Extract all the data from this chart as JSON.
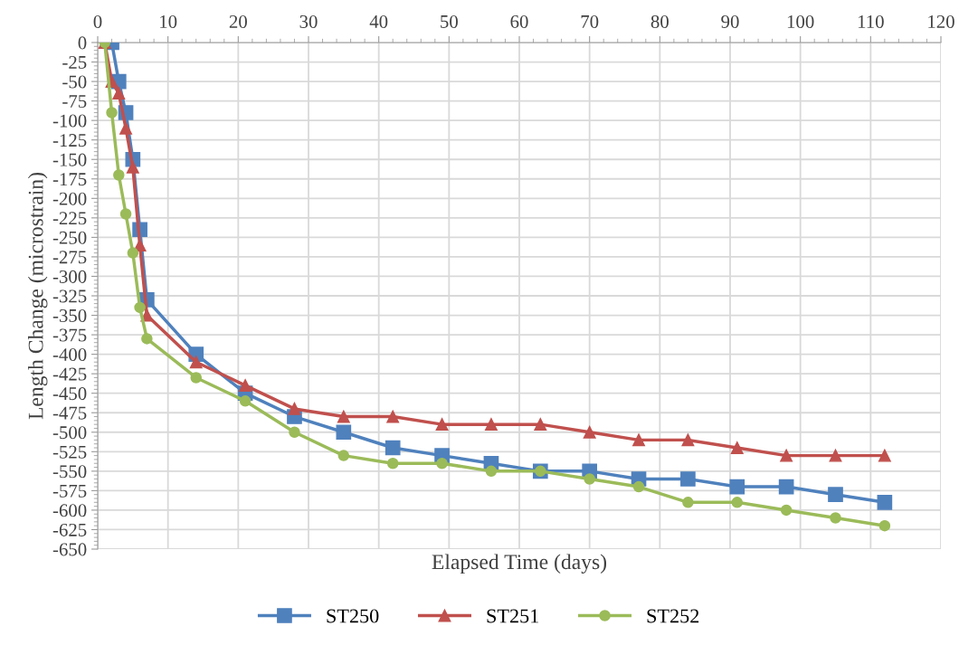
{
  "chart_data": {
    "type": "line",
    "xlabel": "Elapsed Time (days)",
    "ylabel": "Length Change (microstrain)",
    "xlim": [
      0,
      120
    ],
    "xticks": [
      0,
      10,
      20,
      30,
      40,
      50,
      60,
      70,
      80,
      90,
      100,
      110,
      120
    ],
    "ylim": [
      -650,
      0
    ],
    "yticks": [
      0,
      -25,
      -50,
      -75,
      -100,
      -125,
      -150,
      -175,
      -200,
      -225,
      -250,
      -275,
      -300,
      -325,
      -350,
      -375,
      -400,
      -425,
      -450,
      -475,
      -500,
      -525,
      -550,
      -575,
      -600,
      -625,
      -650
    ],
    "grid": true,
    "legend": "bottom",
    "series": [
      {
        "name": "ST250",
        "color": "#4f81bd",
        "marker": "square",
        "x": [
          2,
          3,
          4,
          5,
          6,
          7,
          14,
          21,
          28,
          35,
          42,
          49,
          56,
          63,
          70,
          77,
          84,
          91,
          98,
          105,
          112
        ],
        "values": [
          0,
          -50,
          -90,
          -150,
          -240,
          -330,
          -400,
          -450,
          -480,
          -500,
          -520,
          -530,
          -540,
          -550,
          -550,
          -560,
          -560,
          -570,
          -570,
          -580,
          -590
        ]
      },
      {
        "name": "ST251",
        "color": "#c0504d",
        "marker": "triangle",
        "x": [
          1,
          2,
          3,
          4,
          5,
          6,
          7,
          14,
          21,
          28,
          35,
          42,
          49,
          56,
          63,
          70,
          77,
          84,
          91,
          98,
          105,
          112
        ],
        "values": [
          0,
          -50,
          -65,
          -110,
          -160,
          -260,
          -350,
          -410,
          -440,
          -470,
          -480,
          -480,
          -490,
          -490,
          -490,
          -500,
          -510,
          -510,
          -520,
          -530,
          -530,
          -530
        ]
      },
      {
        "name": "ST252",
        "color": "#9bbb59",
        "marker": "circle",
        "x": [
          1,
          2,
          3,
          4,
          5,
          6,
          7,
          14,
          21,
          28,
          35,
          42,
          49,
          56,
          63,
          70,
          77,
          84,
          91,
          98,
          105,
          112
        ],
        "values": [
          0,
          -90,
          -170,
          -220,
          -270,
          -340,
          -380,
          -430,
          -460,
          -500,
          -530,
          -540,
          -540,
          -550,
          -550,
          -560,
          -570,
          -590,
          -590,
          -600,
          -610,
          -620
        ]
      }
    ]
  }
}
